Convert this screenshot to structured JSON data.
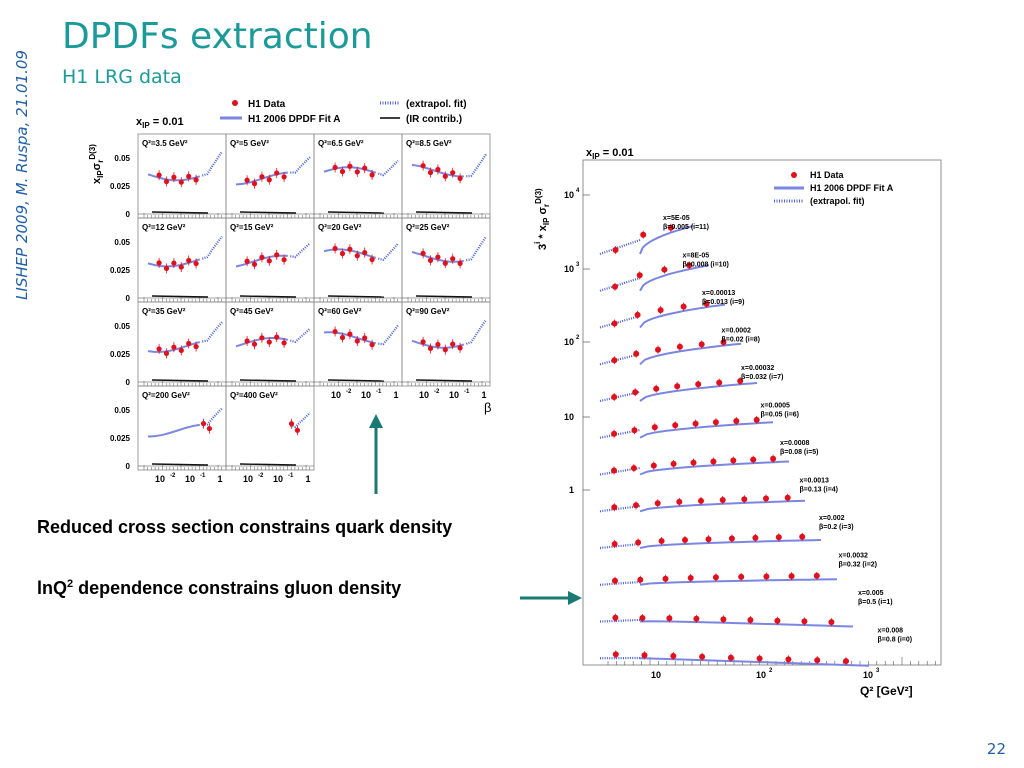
{
  "slide": {
    "title": "DPDFs extraction",
    "subtitle": "H1 LRG data",
    "side_label": "LISHEP 2009, M. Ruspa, 21.01.09",
    "page_number": "22",
    "bullet1": "Reduced cross section constrains quark density",
    "bullet2_a": "lnQ",
    "bullet2_sup": "2",
    "bullet2_b": " dependence constrains gluon density",
    "colors": {
      "title": "#1c9a9a",
      "side": "#1f5fa8",
      "arrow": "#1a7a73",
      "data": "#e0101c",
      "fit": "#7a86e0"
    }
  },
  "left_figure": {
    "xip_label": "x",
    "xip_sub": "IP",
    "xip_value": " = 0.01",
    "legend": [
      {
        "label": "H1 Data",
        "icon": "red-dot"
      },
      {
        "label": "(extrapol. fit)",
        "icon": "dotted-blue"
      },
      {
        "label": "H1 2006 DPDF Fit A",
        "icon": "solid-blue"
      },
      {
        "label": "(IR contrib.)",
        "icon": "solid-black"
      }
    ],
    "y_ticks": [
      "0.05",
      "0.025",
      "0"
    ],
    "x_ticks": [
      "10",
      "10",
      "1"
    ],
    "x_tick_exps": [
      "-2",
      "-1",
      ""
    ],
    "x_axis_label": "β",
    "panels": [
      {
        "q2": "Q²=3.5 GeV²"
      },
      {
        "q2": "Q²=5 GeV²"
      },
      {
        "q2": "Q²=6.5 GeV²"
      },
      {
        "q2": "Q²=8.5 GeV²"
      },
      {
        "q2": "Q²=12 GeV²"
      },
      {
        "q2": "Q²=15 GeV²"
      },
      {
        "q2": "Q²=20 GeV²"
      },
      {
        "q2": "Q²=25 GeV²"
      },
      {
        "q2": "Q²=35 GeV²"
      },
      {
        "q2": "Q²=45 GeV²"
      },
      {
        "q2": "Q²=60 GeV²"
      },
      {
        "q2": "Q²=90 GeV²"
      },
      {
        "q2": "Q²=200 GeV²"
      },
      {
        "q2": "Q²=400 GeV²"
      }
    ]
  },
  "right_figure": {
    "xip_label": "x",
    "xip_sub": "IP",
    "xip_value": " = 0.01",
    "legend": [
      {
        "label": "H1 Data",
        "icon": "red-dot"
      },
      {
        "label": "H1 2006 DPDF Fit A",
        "icon": "solid-blue"
      },
      {
        "label": "(extrapol. fit)",
        "icon": "dotted-blue"
      }
    ],
    "y_ticks": [
      {
        "base": "10",
        "exp": "4"
      },
      {
        "base": "10",
        "exp": "3"
      },
      {
        "base": "10",
        "exp": "2"
      },
      {
        "base": "10",
        "exp": ""
      },
      {
        "base": "1",
        "exp": ""
      }
    ],
    "x_ticks": [
      {
        "base": "10",
        "exp": ""
      },
      {
        "base": "10",
        "exp": "2"
      },
      {
        "base": "10",
        "exp": "3"
      }
    ],
    "x_axis_label": "Q² [GeV²]",
    "curves": [
      {
        "x": "x=5E-05",
        "beta": "β=0.005 (i=11)"
      },
      {
        "x": "x=8E-05",
        "beta": "β=0.008 (i=10)"
      },
      {
        "x": "x=0.00013",
        "beta": "β=0.013 (i=9)"
      },
      {
        "x": "x=0.0002",
        "beta": "β=0.02 (i=8)"
      },
      {
        "x": "x=0.00032",
        "beta": "β=0.032 (i=7)"
      },
      {
        "x": "x=0.0005",
        "beta": "β=0.05 (i=6)"
      },
      {
        "x": "x=0.0008",
        "beta": "β=0.08 (i=5)"
      },
      {
        "x": "x=0.0013",
        "beta": "β=0.13 (i=4)"
      },
      {
        "x": "x=0.002",
        "beta": "β=0.2 (i=3)"
      },
      {
        "x": "x=0.0032",
        "beta": "β=0.32 (i=2)"
      },
      {
        "x": "x=0.005",
        "beta": "β=0.5 (i=1)"
      },
      {
        "x": "x=0.008",
        "beta": "β=0.8 (i=0)"
      }
    ]
  }
}
